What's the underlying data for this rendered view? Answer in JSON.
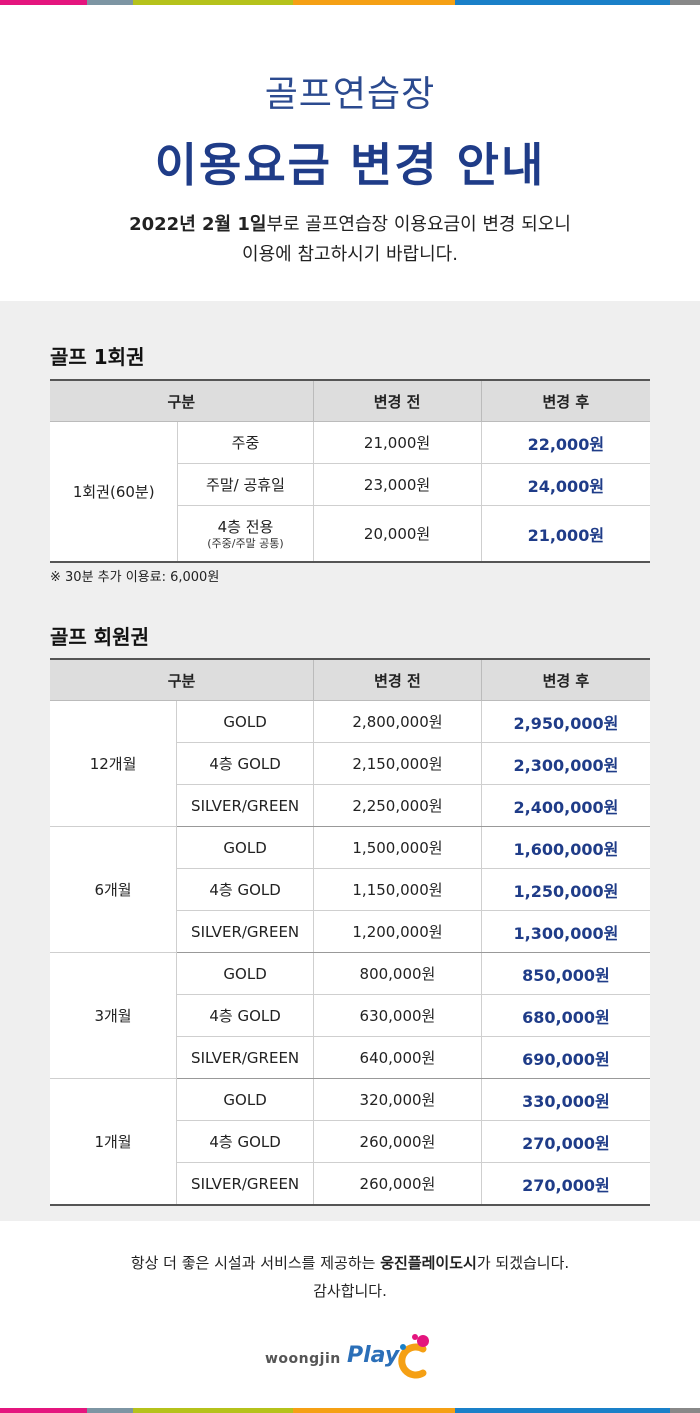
{
  "colors": {
    "accent": "#1f3c88",
    "stripe": [
      "#e4157e",
      "#7d95a3",
      "#b5c21b",
      "#f5a014",
      "#1a80c8",
      "#888888"
    ]
  },
  "header": {
    "title_line1": "골프연습장",
    "title_line2": "이용요금 변경 안내",
    "intro_date": "2022년 2월 1일",
    "intro_rest": "부로 골프연습장 이용요금이 변경 되오니",
    "intro_line2": "이용에 참고하시기 바랍니다."
  },
  "section1": {
    "title": "골프 1회권",
    "headers": [
      "구분",
      "변경 전",
      "변경 후"
    ],
    "category": "1회권(60분)",
    "rows": [
      {
        "sub": "주중",
        "sub_note": "",
        "before": "21,000원",
        "after": "22,000원"
      },
      {
        "sub": "주말/ 공휴일",
        "sub_note": "",
        "before": "23,000원",
        "after": "24,000원"
      },
      {
        "sub": "4층 전용",
        "sub_note": "(주중/주말 공통)",
        "before": "20,000원",
        "after": "21,000원"
      }
    ],
    "note": "※ 30분 추가 이용료: 6,000원"
  },
  "section2": {
    "title": "골프 회원권",
    "headers": [
      "구분",
      "변경 전",
      "변경 후"
    ],
    "groups": [
      {
        "category": "12개월",
        "rows": [
          {
            "sub": "GOLD",
            "before": "2,800,000원",
            "after": "2,950,000원"
          },
          {
            "sub": "4층 GOLD",
            "before": "2,150,000원",
            "after": "2,300,000원"
          },
          {
            "sub": "SILVER/GREEN",
            "before": "2,250,000원",
            "after": "2,400,000원"
          }
        ]
      },
      {
        "category": "6개월",
        "rows": [
          {
            "sub": "GOLD",
            "before": "1,500,000원",
            "after": "1,600,000원"
          },
          {
            "sub": "4층 GOLD",
            "before": "1,150,000원",
            "after": "1,250,000원"
          },
          {
            "sub": "SILVER/GREEN",
            "before": "1,200,000원",
            "after": "1,300,000원"
          }
        ]
      },
      {
        "category": "3개월",
        "rows": [
          {
            "sub": "GOLD",
            "before": "800,000원",
            "after": "850,000원"
          },
          {
            "sub": "4층 GOLD",
            "before": "630,000원",
            "after": "680,000원"
          },
          {
            "sub": "SILVER/GREEN",
            "before": "640,000원",
            "after": "690,000원"
          }
        ]
      },
      {
        "category": "1개월",
        "rows": [
          {
            "sub": "GOLD",
            "before": "320,000원",
            "after": "330,000원"
          },
          {
            "sub": "4층 GOLD",
            "before": "260,000원",
            "after": "270,000원"
          },
          {
            "sub": "SILVER/GREEN",
            "before": "260,000원",
            "after": "270,000원"
          }
        ]
      }
    ]
  },
  "footer": {
    "closing_pre": "항상 더 좋은 시설과 서비스를 제공하는 ",
    "closing_brand": "웅진플레이도시",
    "closing_post": "가 되겠습니다.",
    "closing_line2": "감사합니다.",
    "logo_text": "woongjin",
    "logo_play": "Play",
    "logo_icon": "play-c-logo-icon"
  }
}
